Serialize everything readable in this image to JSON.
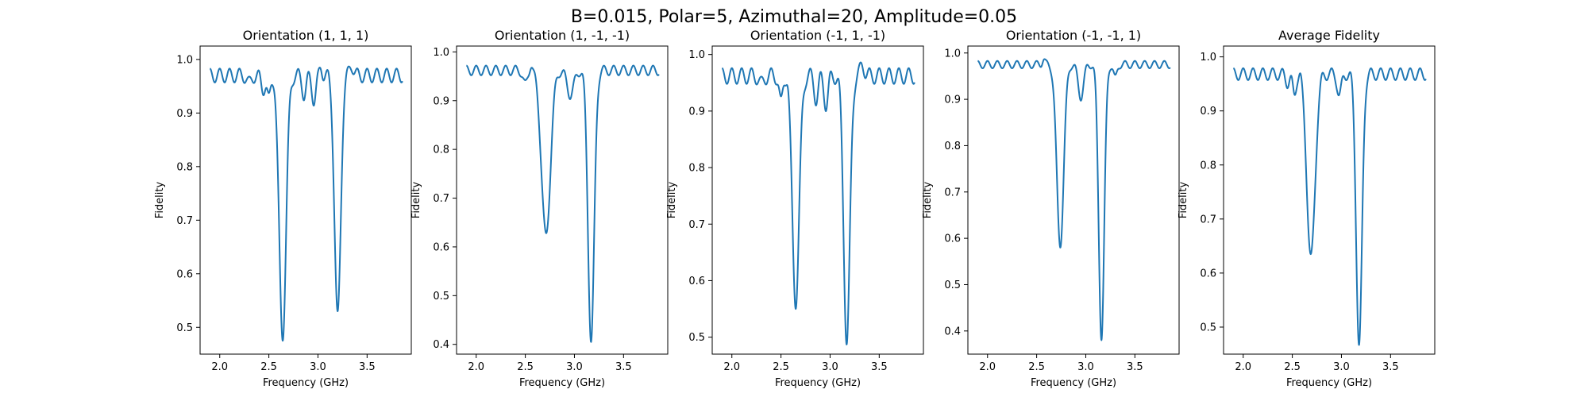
{
  "figure": {
    "suptitle": "B=0.015, Polar=5, Azimuthal=20, Amplitude=0.05"
  },
  "chart_data": [
    {
      "type": "line",
      "title": "Orientation (1, 1, 1)",
      "xlabel": "Frequency (GHz)",
      "ylabel": "Fidelity",
      "xlim": [
        1.8,
        3.95
      ],
      "ylim": [
        0.45,
        1.025
      ],
      "xticks": [
        "2.0",
        "2.5",
        "3.0",
        "3.5"
      ],
      "yticks": [
        "0.5",
        "0.6",
        "0.7",
        "0.8",
        "0.9",
        "1.0"
      ],
      "grid": false,
      "ripple": {
        "base": 0.97,
        "amp": 0.013,
        "period": 0.1
      },
      "dips": [
        {
          "center": 2.3,
          "depth": 0.015,
          "width": 0.03
        },
        {
          "center": 2.44,
          "depth": 0.025,
          "width": 0.03
        },
        {
          "center": 2.5,
          "depth": 0.045,
          "width": 0.025
        },
        {
          "center": 2.64,
          "depth": 0.495,
          "width": 0.05
        },
        {
          "center": 2.86,
          "depth": 0.035,
          "width": 0.03
        },
        {
          "center": 2.96,
          "depth": 0.045,
          "width": 0.03
        },
        {
          "center": 3.2,
          "depth": 0.44,
          "width": 0.045
        }
      ],
      "bumps": [
        {
          "center": 2.56,
          "height": 0.01,
          "width": 0.02
        },
        {
          "center": 3.03,
          "height": 0.015,
          "width": 0.02
        },
        {
          "center": 3.34,
          "height": 0.02,
          "width": 0.03
        }
      ],
      "minima": [
        {
          "x": 2.64,
          "y": 0.475
        },
        {
          "x": 3.2,
          "y": 0.53
        }
      ]
    },
    {
      "type": "line",
      "title": "Orientation (1, -1, -1)",
      "xlabel": "Frequency (GHz)",
      "ylabel": "Fidelity",
      "xlim": [
        1.8,
        3.95
      ],
      "ylim": [
        0.38,
        1.012
      ],
      "xticks": [
        "2.0",
        "2.5",
        "3.0",
        "3.5"
      ],
      "yticks": [
        "0.4",
        "0.5",
        "0.6",
        "0.7",
        "0.8",
        "0.9",
        "1.0"
      ],
      "grid": false,
      "ripple": {
        "base": 0.962,
        "amp": 0.01,
        "period": 0.1
      },
      "dips": [
        {
          "center": 2.5,
          "depth": 0.03,
          "width": 0.03
        },
        {
          "center": 2.71,
          "depth": 0.335,
          "width": 0.065
        },
        {
          "center": 2.96,
          "depth": 0.05,
          "width": 0.05
        },
        {
          "center": 3.17,
          "depth": 0.555,
          "width": 0.045
        }
      ],
      "bumps": [
        {
          "center": 2.56,
          "height": 0.015,
          "width": 0.02
        }
      ],
      "minima": [
        {
          "x": 2.71,
          "y": 0.628
        },
        {
          "x": 3.17,
          "y": 0.405
        }
      ]
    },
    {
      "type": "line",
      "title": "Orientation (-1, 1, -1)",
      "xlabel": "Frequency (GHz)",
      "ylabel": "Fidelity",
      "xlim": [
        1.8,
        3.95
      ],
      "ylim": [
        0.47,
        1.015
      ],
      "xticks": [
        "2.0",
        "2.5",
        "3.0",
        "3.5"
      ],
      "yticks": [
        "0.5",
        "0.6",
        "0.7",
        "0.8",
        "0.9",
        "1.0"
      ],
      "grid": false,
      "ripple": {
        "base": 0.962,
        "amp": 0.014,
        "period": 0.1
      },
      "dips": [
        {
          "center": 2.3,
          "depth": 0.015,
          "width": 0.03
        },
        {
          "center": 2.5,
          "depth": 0.05,
          "width": 0.025
        },
        {
          "center": 2.65,
          "depth": 0.41,
          "width": 0.05
        },
        {
          "center": 2.86,
          "depth": 0.04,
          "width": 0.03
        },
        {
          "center": 2.96,
          "depth": 0.05,
          "width": 0.03
        },
        {
          "center": 3.17,
          "depth": 0.475,
          "width": 0.045
        }
      ],
      "bumps": [
        {
          "center": 2.57,
          "height": 0.015,
          "width": 0.02
        },
        {
          "center": 3.33,
          "height": 0.02,
          "width": 0.03
        }
      ],
      "minima": [
        {
          "x": 2.65,
          "y": 0.55
        },
        {
          "x": 3.17,
          "y": 0.487
        }
      ]
    },
    {
      "type": "line",
      "title": "Orientation (-1, -1, 1)",
      "xlabel": "Frequency (GHz)",
      "ylabel": "Fidelity",
      "xlim": [
        1.8,
        3.95
      ],
      "ylim": [
        0.35,
        1.015
      ],
      "xticks": [
        "2.0",
        "2.5",
        "3.0",
        "3.5"
      ],
      "yticks": [
        "0.4",
        "0.5",
        "0.6",
        "0.7",
        "0.8",
        "0.9",
        "1.0"
      ],
      "grid": false,
      "ripple": {
        "base": 0.975,
        "amp": 0.008,
        "period": 0.1
      },
      "dips": [
        {
          "center": 2.74,
          "depth": 0.395,
          "width": 0.05
        },
        {
          "center": 2.95,
          "depth": 0.07,
          "width": 0.04
        },
        {
          "center": 3.16,
          "depth": 0.595,
          "width": 0.04
        },
        {
          "center": 3.3,
          "depth": 0.03,
          "width": 0.025
        }
      ],
      "bumps": [
        {
          "center": 2.57,
          "height": 0.012,
          "width": 0.02
        }
      ],
      "minima": [
        {
          "x": 2.74,
          "y": 0.58
        },
        {
          "x": 3.16,
          "y": 0.38
        }
      ]
    },
    {
      "type": "line",
      "title": "Average Fidelity",
      "xlabel": "Frequency (GHz)",
      "ylabel": "Fidelity",
      "xlim": [
        1.8,
        3.95
      ],
      "ylim": [
        0.45,
        1.02
      ],
      "xticks": [
        "2.0",
        "2.5",
        "3.0",
        "3.5"
      ],
      "yticks": [
        "0.5",
        "0.6",
        "0.7",
        "0.8",
        "0.9",
        "1.0"
      ],
      "grid": false,
      "ripple": {
        "base": 0.968,
        "amp": 0.011,
        "period": 0.1
      },
      "dips": [
        {
          "center": 2.45,
          "depth": 0.015,
          "width": 0.03
        },
        {
          "center": 2.52,
          "depth": 0.04,
          "width": 0.025
        },
        {
          "center": 2.69,
          "depth": 0.335,
          "width": 0.06
        },
        {
          "center": 2.98,
          "depth": 0.04,
          "width": 0.03
        },
        {
          "center": 3.18,
          "depth": 0.505,
          "width": 0.042
        }
      ],
      "bumps": [
        {
          "center": 2.58,
          "height": 0.01,
          "width": 0.02
        }
      ],
      "minima": [
        {
          "x": 2.69,
          "y": 0.635
        },
        {
          "x": 3.18,
          "y": 0.467
        }
      ]
    }
  ]
}
